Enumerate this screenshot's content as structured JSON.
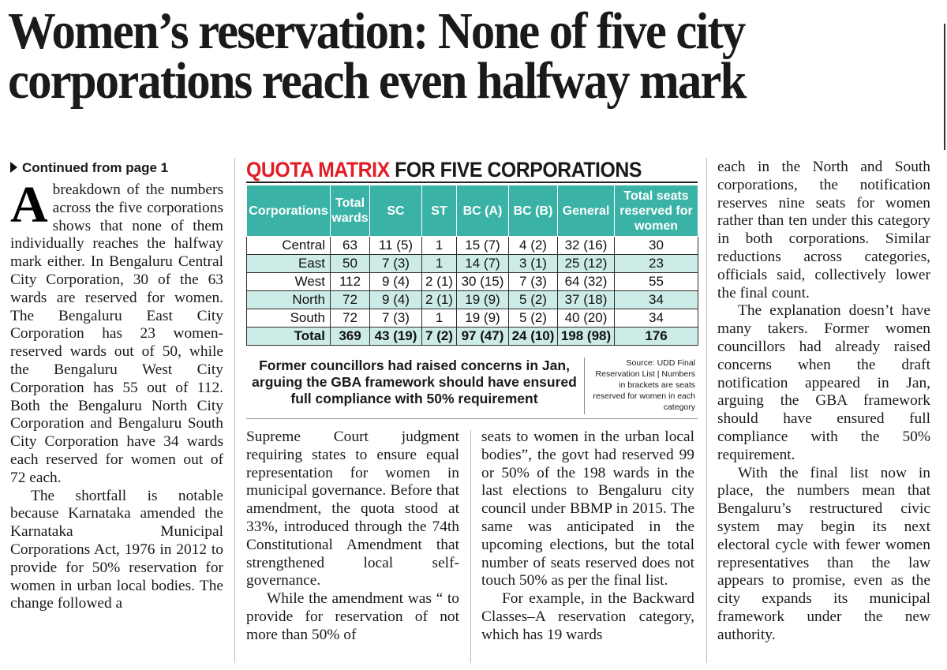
{
  "headline": "Women’s reservation: None of five city corporations reach even halfway mark",
  "continued": "Continued from page 1",
  "box": {
    "title_red": "QUOTA MATRIX",
    "title_rest": "FOR FIVE CORPORATIONS",
    "headers": [
      "Corporations",
      "Total wards",
      "SC",
      "ST",
      "BC (A)",
      "BC (B)",
      "General",
      "Total seats reserved for women"
    ],
    "rows": [
      [
        "Central",
        "63",
        "11 (5)",
        "1",
        "15 (7)",
        "4 (2)",
        "32 (16)",
        "30"
      ],
      [
        "East",
        "50",
        "7 (3)",
        "1",
        "14 (7)",
        "3 (1)",
        "25 (12)",
        "23"
      ],
      [
        "West",
        "112",
        "9 (4)",
        "2 (1)",
        "30 (15)",
        "7 (3)",
        "64 (32)",
        "55"
      ],
      [
        "North",
        "72",
        "9 (4)",
        "2 (1)",
        "19 (9)",
        "5 (2)",
        "37 (18)",
        "34"
      ],
      [
        "South",
        "72",
        "7 (3)",
        "1",
        "19 (9)",
        "5 (2)",
        "40 (20)",
        "34"
      ]
    ],
    "total": [
      "Total",
      "369",
      "43 (19)",
      "7 (2)",
      "97 (47)",
      "24 (10)",
      "198 (98)",
      "176"
    ],
    "quote": "Former councillors had raised concerns in Jan, arguing the GBA framework should have ensured full compliance with 50% requirement",
    "source": "Source: UDD Final Reservation List | Numbers in brackets are seats reserved for women in each category"
  },
  "article": {
    "dropcap": "A",
    "col1_p1": "breakdown of the numbers across the five corporations shows that none of them individually reaches the halfway mark either. In Bengaluru Central City Corporation, 30 of the 63 wards are reserved for women. The Bengaluru East City Corporation has 23 women-reserved wards out of 50, while the Bengaluru West City Corporation has 55 out of 112. Both the Bengaluru North City Corporation and Bengaluru South City Corporation have 34 wards each reserved for women out of 72 each.",
    "col1_p2": "The shortfall is notable because Karnataka amended the Karnataka Municipal Corporations Act, 1976 in 2012 to provide for 50% reservation for women in urban local bodies. The change followed a",
    "col2_p1": "Supreme Court judgment requiring states to ensure equal representation for women in municipal governance. Before that amendment, the quota stood at 33%, introduced through the 74th Constitutional Amendment that strengthened local self-governance.",
    "col2_p2": "While the amendment was “ to provide for reservation of not more than 50% of",
    "col3_p1": "seats to women in the urban local bodies”, the govt had reserved 99 or 50% of the 198 wards in the last elections to Bengaluru city council under BBMP in 2015. The same was anticipated in the upcoming elections, but the total number of seats reserved does not touch 50% as per the final list.",
    "col3_p2": "For example, in the Backward Classes–A reservation category, which has 19 wards",
    "col4_p1": "each in the North and South corporations, the notification reserves nine seats for women rather than ten under this category in both corporations. Similar reductions across categories, officials said, collectively lower the final count.",
    "col4_p2": "The explanation doesn’t have many takers. Former women councillors had already raised concerns when the draft notification appeared in Jan, arguing the GBA framework should have ensured full compliance with the 50% requirement.",
    "col4_p3": "With the final list now in place, the numbers mean that Bengaluru’s restructured civic system may begin its next electoral cycle with fewer women representatives than the law appears to promise, even as the city expands its municipal framework under the new authority."
  }
}
